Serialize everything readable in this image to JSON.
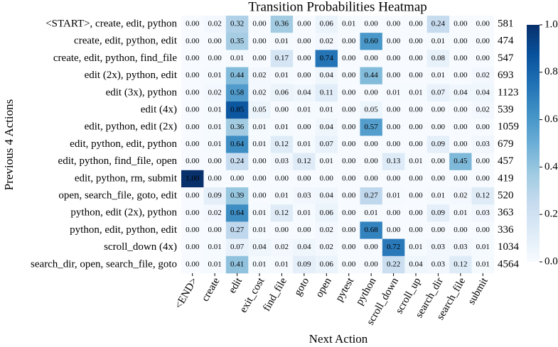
{
  "chart_data": {
    "type": "heatmap",
    "title": "Transition Probabilities Heatmap",
    "x_label": "Next Action",
    "y_label": "Previous 4 Actions",
    "columns": [
      "<END>",
      "create",
      "edit",
      "exit_cost",
      "find_file",
      "goto",
      "open",
      "pytest",
      "python",
      "scroll_down",
      "scroll_up",
      "search_dir",
      "search_file",
      "submit"
    ],
    "rows": [
      "<START>, create, edit, python",
      "create, edit, python, edit",
      "create, edit, python, find_file",
      "edit (2x), python, edit",
      "edit (3x), python",
      "edit (4x)",
      "edit, python, edit (2x)",
      "edit, python, edit, python",
      "edit, python, find_file, open",
      "edit, python, rm, submit",
      "open, search_file, goto, edit",
      "python, edit (2x), python",
      "python, edit, python, edit",
      "scroll_down (4x)",
      "search_dir, open, search_file, goto"
    ],
    "row_counts": [
      581,
      474,
      547,
      693,
      1123,
      539,
      1059,
      679,
      457,
      419,
      520,
      363,
      336,
      1034,
      4564
    ],
    "values": [
      [
        0,
        0.02,
        0.32,
        0,
        0.36,
        0,
        0.06,
        0.01,
        0,
        0,
        0,
        0.24,
        0,
        0
      ],
      [
        0,
        0,
        0.35,
        0,
        0.01,
        0,
        0.02,
        0,
        0.6,
        0,
        0,
        0.01,
        0,
        0
      ],
      [
        0,
        0,
        0.01,
        0,
        0.17,
        0,
        0.74,
        0,
        0,
        0,
        0,
        0.08,
        0,
        0
      ],
      [
        0,
        0.01,
        0.44,
        0.02,
        0.01,
        0,
        0.04,
        0,
        0.44,
        0,
        0,
        0.01,
        0,
        0.02
      ],
      [
        0,
        0.02,
        0.58,
        0.02,
        0.06,
        0.04,
        0.11,
        0,
        0,
        0.01,
        0.01,
        0.07,
        0.04,
        0.04
      ],
      [
        0,
        0.01,
        0.85,
        0.05,
        0,
        0.01,
        0.01,
        0,
        0.05,
        0,
        0,
        0,
        0,
        0.02
      ],
      [
        0,
        0.01,
        0.36,
        0.01,
        0.01,
        0,
        0.04,
        0,
        0.57,
        0,
        0,
        0,
        0,
        0
      ],
      [
        0,
        0.01,
        0.64,
        0.01,
        0.12,
        0.01,
        0.07,
        0,
        0,
        0,
        0,
        0.09,
        0,
        0.03
      ],
      [
        0,
        0,
        0.24,
        0,
        0.03,
        0.12,
        0.01,
        0,
        0,
        0.13,
        0.01,
        0,
        0.45,
        0
      ],
      [
        1,
        0,
        0,
        0,
        0,
        0,
        0,
        0,
        0,
        0,
        0,
        0,
        0,
        0
      ],
      [
        0,
        0.09,
        0.39,
        0,
        0.01,
        0.03,
        0.04,
        0,
        0.27,
        0.01,
        0,
        0.01,
        0.02,
        0.12
      ],
      [
        0,
        0.02,
        0.64,
        0.01,
        0.12,
        0.01,
        0.06,
        0,
        0.01,
        0,
        0,
        0.09,
        0.01,
        0.03
      ],
      [
        0,
        0,
        0.27,
        0.01,
        0,
        0,
        0.02,
        0,
        0.68,
        0,
        0,
        0,
        0,
        0
      ],
      [
        0,
        0.01,
        0.07,
        0.04,
        0.02,
        0.04,
        0.02,
        0,
        0,
        0.72,
        0.01,
        0.03,
        0.03,
        0.01
      ],
      [
        0,
        0.01,
        0.41,
        0.01,
        0.01,
        0.09,
        0.06,
        0,
        0,
        0.22,
        0.04,
        0.03,
        0.12,
        0.01
      ]
    ],
    "value_labels": [
      [
        "0.00",
        "0.02",
        "0.32",
        "0.00",
        "0.36",
        "0.00",
        "0.06",
        "0.01",
        "0.00",
        "0.00",
        "0.00",
        "0.24",
        "0.00",
        "0.00"
      ],
      [
        "0.00",
        "0.00",
        "0.35",
        "0.00",
        "0.01",
        "0.00",
        "0.02",
        "0.00",
        "0.60",
        "0.00",
        "0.00",
        "0.01",
        "0.00",
        "0.00"
      ],
      [
        "0.00",
        "0.00",
        "0.01",
        "0.00",
        "0.17",
        "0.00",
        "0.74",
        "0.00",
        "0.00",
        "0.00",
        "0.00",
        "0.08",
        "0.00",
        "0.00"
      ],
      [
        "0.00",
        "0.01",
        "0.44",
        "0.02",
        "0.01",
        "0.00",
        "0.04",
        "0.00",
        "0.44",
        "0.00",
        "0.00",
        "0.01",
        "0.00",
        "0.02"
      ],
      [
        "0.00",
        "0.02",
        "0.58",
        "0.02",
        "0.06",
        "0.04",
        "0.11",
        "0.00",
        "0.00",
        "0.01",
        "0.01",
        "0.07",
        "0.04",
        "0.04"
      ],
      [
        "0.00",
        "0.01",
        "0.85",
        "0.05",
        "0.00",
        "0.01",
        "0.01",
        "0.00",
        "0.05",
        "0.00",
        "0.00",
        "0.00",
        "0.00",
        "0.02"
      ],
      [
        "0.00",
        "0.01",
        "0.36",
        "0.01",
        "0.01",
        "0.00",
        "0.04",
        "0.00",
        "0.57",
        "0.00",
        "0.00",
        "0.00",
        "0.00",
        "0.00"
      ],
      [
        "0.00",
        "0.01",
        "0.64",
        "0.01",
        "0.12",
        "0.01",
        "0.07",
        "0.00",
        "0.00",
        "0.00",
        "0.00",
        "0.09",
        "0.00",
        "0.03"
      ],
      [
        "0.00",
        "0.00",
        "0.24",
        "0.00",
        "0.03",
        "0.12",
        "0.01",
        "0.00",
        "0.00",
        "0.13",
        "0.01",
        "0.00",
        "0.45",
        "0.00"
      ],
      [
        "1.00",
        "0.00",
        "0.00",
        "0.00",
        "0.00",
        "0.00",
        "0.00",
        "0.00",
        "0.00",
        "0.00",
        "0.00",
        "0.00",
        "0.00",
        "0.00"
      ],
      [
        "0.00",
        "0.09",
        "0.39",
        "0.00",
        "0.01",
        "0.03",
        "0.04",
        "0.00",
        "0.27",
        "0.01",
        "0.00",
        "0.01",
        "0.02",
        "0.12"
      ],
      [
        "0.00",
        "0.02",
        "0.64",
        "0.01",
        "0.12",
        "0.01",
        "0.06",
        "0.00",
        "0.01",
        "0.00",
        "0.00",
        "0.09",
        "0.01",
        "0.03"
      ],
      [
        "0.00",
        "0.00",
        "0.27",
        "0.01",
        "0.00",
        "0.00",
        "0.02",
        "0.00",
        "0.68",
        "0.00",
        "0.00",
        "0.00",
        "0.00",
        "0.00"
      ],
      [
        "0.00",
        "0.01",
        "0.07",
        "0.04",
        "0.02",
        "0.04",
        "0.02",
        "0.00",
        "0.00",
        "0.72",
        "0.01",
        "0.03",
        "0.03",
        "0.01"
      ],
      [
        "0.00",
        "0.01",
        "0.41",
        "0.01",
        "0.01",
        "0.09",
        "0.06",
        "0.00",
        "0.00",
        "0.22",
        "0.04",
        "0.03",
        "0.12",
        "0.01"
      ]
    ],
    "colormap": "Blues",
    "colorbar_lim": [
      0,
      1
    ],
    "colorbar_ticks": [
      {
        "value": 0,
        "label": "0.0"
      },
      0.2,
      0.4,
      0.6,
      0.8,
      {
        "value": 1,
        "label": "1.0"
      }
    ]
  }
}
